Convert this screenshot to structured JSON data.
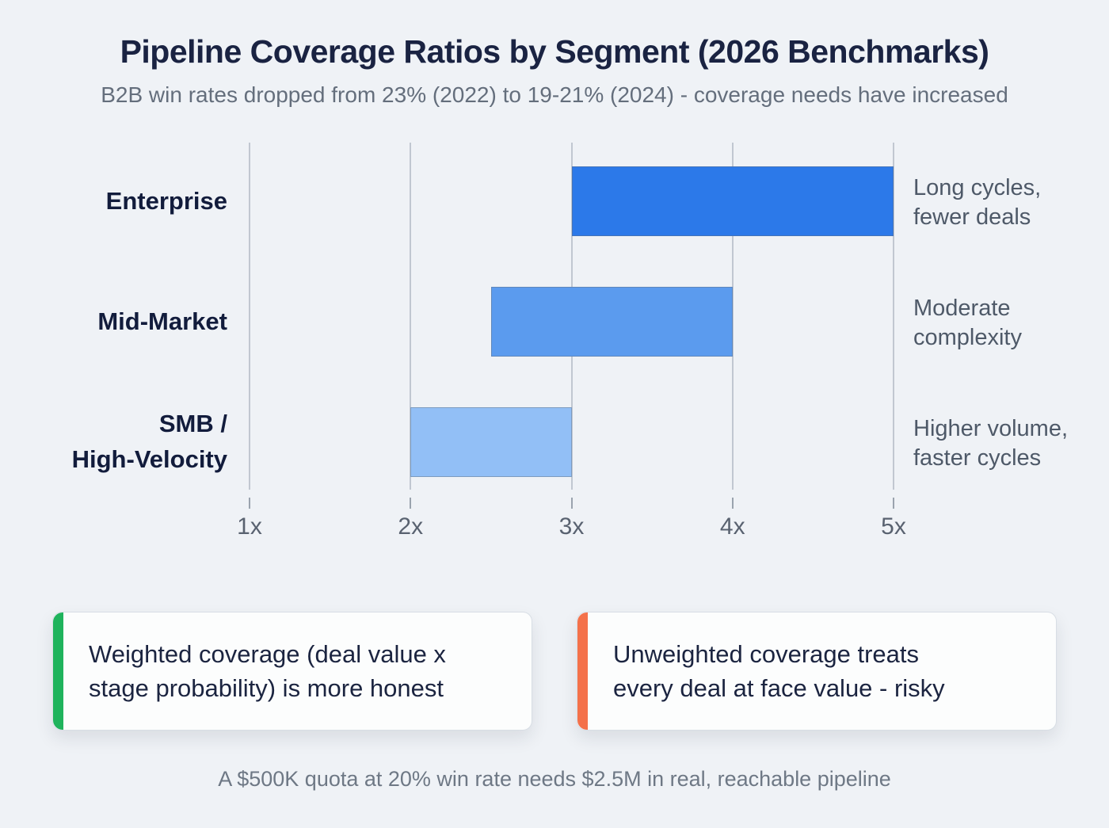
{
  "header": {
    "title": "Pipeline Coverage Ratios by Segment (2026 Benchmarks)",
    "subtitle": "B2B win rates dropped from 23% (2022) to 19-21% (2024) - coverage needs have increased"
  },
  "chart": {
    "rows": [
      {
        "id": "enterprise",
        "label": "Enterprise",
        "label_lines": [
          "Enterprise"
        ],
        "start": 3.0,
        "end": 5.0,
        "color": "#2c79e9",
        "annotation": "Long cycles, fewer deals",
        "annotation_lines": [
          "Long cycles,",
          "fewer deals"
        ]
      },
      {
        "id": "mid-market",
        "label": "Mid-Market",
        "label_lines": [
          "Mid-Market"
        ],
        "start": 2.5,
        "end": 4.0,
        "color": "#5b9bee",
        "annotation": "Moderate complexity",
        "annotation_lines": [
          "Moderate",
          "complexity"
        ]
      },
      {
        "id": "smb-high-velocity",
        "label": "SMB / High-Velocity",
        "label_lines": [
          "SMB /",
          "High-Velocity"
        ],
        "start": 2.0,
        "end": 3.0,
        "color": "#92bff6",
        "annotation": "Higher volume, faster cycles",
        "annotation_lines": [
          "Higher volume,",
          "faster cycles"
        ]
      }
    ],
    "axis": {
      "min": 1,
      "max": 5,
      "ticks": [
        {
          "value": 1,
          "label": "1x"
        },
        {
          "value": 2,
          "label": "2x"
        },
        {
          "value": 3,
          "label": "3x"
        },
        {
          "value": 4,
          "label": "4x"
        },
        {
          "value": 5,
          "label": "5x"
        }
      ]
    }
  },
  "chart_data": {
    "type": "bar",
    "subtype": "horizontal-range-bars",
    "title": "Pipeline Coverage Ratios by Segment (2026 Benchmarks)",
    "subtitle": "B2B win rates dropped from 23% (2022) to 19-21% (2024) - coverage needs have increased",
    "categories": [
      "Enterprise",
      "Mid-Market",
      "SMB / High-Velocity"
    ],
    "series": [
      {
        "name": "Coverage ratio range",
        "ranges": [
          [
            3.0,
            5.0
          ],
          [
            2.5,
            4.0
          ],
          [
            2.0,
            3.0
          ]
        ]
      }
    ],
    "annotations": [
      "Long cycles, fewer deals",
      "Moderate complexity",
      "Higher volume, faster cycles"
    ],
    "xlabel": "",
    "ylabel": "",
    "x_tick_labels": [
      "1x",
      "2x",
      "3x",
      "4x",
      "5x"
    ],
    "xlim": [
      1,
      5
    ],
    "grid": true,
    "legend_position": "none",
    "bar_colors": [
      "#2c79e9",
      "#5b9bee",
      "#92bff6"
    ]
  },
  "callouts": [
    {
      "id": "weighted",
      "accent_color": "#1fb35c",
      "text": "Weighted coverage (deal value x stage probability) is more honest",
      "lines": [
        "Weighted coverage (deal value x",
        "stage probability) is more honest"
      ]
    },
    {
      "id": "unweighted",
      "accent_color": "#f4714a",
      "text": "Unweighted coverage treats every deal at face value - risky",
      "lines": [
        "Unweighted coverage treats",
        "every deal at face value - risky"
      ]
    }
  ],
  "footer": {
    "note": "A $500K quota at 20% win rate needs $2.5M in real, reachable pipeline"
  },
  "colors": {
    "background": "#eff2f6",
    "title": "#1a2342",
    "subtitle": "#646e7c",
    "gridline": "#b9c0ca",
    "axis_label": "#596270",
    "segment_label": "#121c3c",
    "annotation": "#4e5968",
    "card_background": "#fcfdfd",
    "card_border": "#d8dee5",
    "card_text": "#1b2440",
    "green_accent": "#1fb35c",
    "orange_accent": "#f4714a",
    "footer": "#6e7885"
  }
}
